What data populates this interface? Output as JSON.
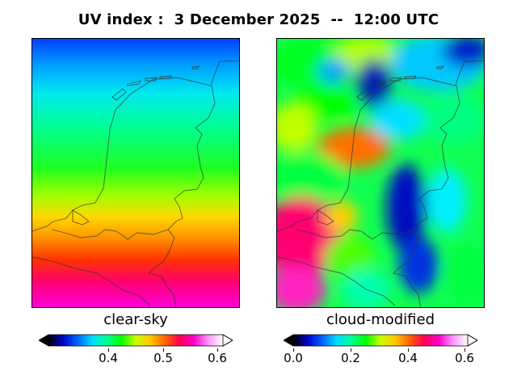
{
  "title": "UV index :  3 December 2025  --  12:00 UTC",
  "panels": [
    {
      "label": "clear-sky"
    },
    {
      "label": "cloud-modified"
    }
  ],
  "colorbars": [
    {
      "min": 0.29,
      "max": 0.61,
      "ticks": [
        "0.4",
        "0.5",
        "0.6"
      ],
      "tick_values": [
        0.4,
        0.5,
        0.6
      ]
    },
    {
      "min": 0.0,
      "max": 0.61,
      "ticks": [
        "0.0",
        "0.2",
        "0.4",
        "0.6"
      ],
      "tick_values": [
        0.0,
        0.2,
        0.4,
        0.6
      ]
    }
  ],
  "colormap": [
    "#000000",
    "#0000c8",
    "#0064ff",
    "#00dcff",
    "#00ff96",
    "#00ff00",
    "#c8ff00",
    "#ffc800",
    "#ff6400",
    "#ff0050",
    "#ff00c8",
    "#ff96ff",
    "#ffffff"
  ]
}
